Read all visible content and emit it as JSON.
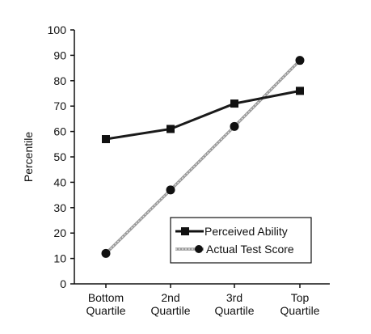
{
  "chart_data": {
    "type": "line",
    "title": "",
    "xlabel": "",
    "ylabel": "Percentile",
    "ylim": [
      0,
      100
    ],
    "y_ticks": [
      0,
      10,
      20,
      30,
      40,
      50,
      60,
      70,
      80,
      90,
      100
    ],
    "categories": [
      [
        "Bottom",
        "Quartile"
      ],
      [
        "2nd",
        "Quartile"
      ],
      [
        "3rd",
        "Quartile"
      ],
      [
        "Top",
        "Quartile"
      ]
    ],
    "series": [
      {
        "name": "Perceived Ability",
        "values": [
          57,
          61,
          71,
          76
        ],
        "marker": "square",
        "line_style": "solid",
        "color": "#1a1a1a"
      },
      {
        "name": "Actual Test Score",
        "values": [
          12,
          37,
          62,
          88
        ],
        "marker": "circle",
        "line_style": "dotted-gray",
        "color": "#9a9a9a"
      }
    ],
    "grid": false,
    "legend_position": "bottom-right"
  }
}
